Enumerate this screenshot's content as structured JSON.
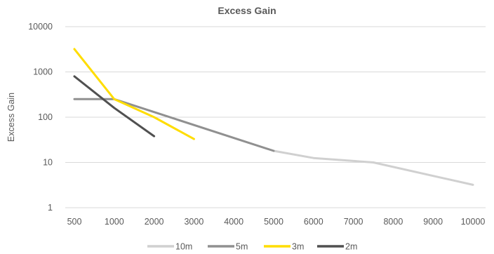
{
  "chart_data": {
    "type": "line",
    "title": "Excess Gain",
    "xlabel": "",
    "ylabel": "Excess Gain",
    "y_scale": "log",
    "ylim": [
      1,
      10000
    ],
    "xlim": [
      500,
      10000
    ],
    "x_ticks": [
      500,
      1000,
      2000,
      3000,
      4000,
      5000,
      6000,
      7000,
      8000,
      9000,
      10000
    ],
    "y_ticks": [
      1,
      10,
      100,
      1000,
      10000
    ],
    "grid": "horizontal",
    "legend_position": "bottom",
    "series": [
      {
        "name": "10m",
        "color": "#d0d0d0",
        "points": [
          [
            5000,
            18
          ],
          [
            6000,
            12.5
          ],
          [
            7500,
            10
          ],
          [
            10000,
            3.2
          ]
        ]
      },
      {
        "name": "5m",
        "color": "#909090",
        "points": [
          [
            500,
            250
          ],
          [
            1000,
            250
          ],
          [
            2000,
            130
          ],
          [
            5000,
            18
          ]
        ]
      },
      {
        "name": "3m",
        "color": "#ffdd00",
        "points": [
          [
            500,
            3200
          ],
          [
            1000,
            250
          ],
          [
            2000,
            100
          ],
          [
            3000,
            33
          ]
        ]
      },
      {
        "name": "2m",
        "color": "#505050",
        "points": [
          [
            500,
            800
          ],
          [
            1000,
            160
          ],
          [
            2000,
            38
          ]
        ]
      }
    ]
  }
}
